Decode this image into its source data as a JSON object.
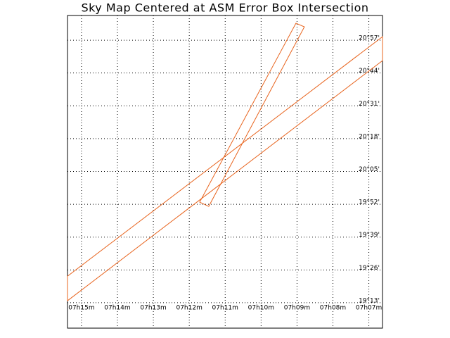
{
  "chart_data": {
    "type": "polygon",
    "title": "Sky Map Centered at ASM Error Box Intersection",
    "xlim": [
      15.39,
      6.62
    ],
    "ylim": [
      19.049,
      21.113
    ],
    "xticks": [
      {
        "value": 15,
        "label": "07h15m"
      },
      {
        "value": 14,
        "label": "07h14m"
      },
      {
        "value": 13,
        "label": "07h13m"
      },
      {
        "value": 12,
        "label": "07h12m"
      },
      {
        "value": 11,
        "label": "07h11m"
      },
      {
        "value": 10,
        "label": "07h10m"
      },
      {
        "value": 9,
        "label": "07h09m"
      },
      {
        "value": 8,
        "label": "07h08m"
      },
      {
        "value": 7,
        "label": "07h07m"
      }
    ],
    "yticks": [
      {
        "value": 20.95,
        "label": "20°57'"
      },
      {
        "value": 20.7333,
        "label": "20°44'"
      },
      {
        "value": 20.5167,
        "label": "20°31'"
      },
      {
        "value": 20.3,
        "label": "20°18'"
      },
      {
        "value": 20.0833,
        "label": "20°05'"
      },
      {
        "value": 19.8667,
        "label": "19°52'"
      },
      {
        "value": 19.65,
        "label": "19°39'"
      },
      {
        "value": 19.4333,
        "label": "19°26'"
      },
      {
        "value": 19.2167,
        "label": "19°13'"
      }
    ],
    "grid": true,
    "shapes": [
      {
        "color": "#e8641e",
        "x": [
          9.03,
          8.795,
          11.457,
          11.71
        ],
        "y": [
          21.062,
          21.038,
          19.853,
          19.881
        ]
      },
      {
        "color": "#e8641e",
        "x": [
          15.39,
          6.62,
          6.62,
          15.39
        ],
        "y": [
          19.392,
          20.973,
          20.815,
          19.23
        ]
      }
    ]
  }
}
